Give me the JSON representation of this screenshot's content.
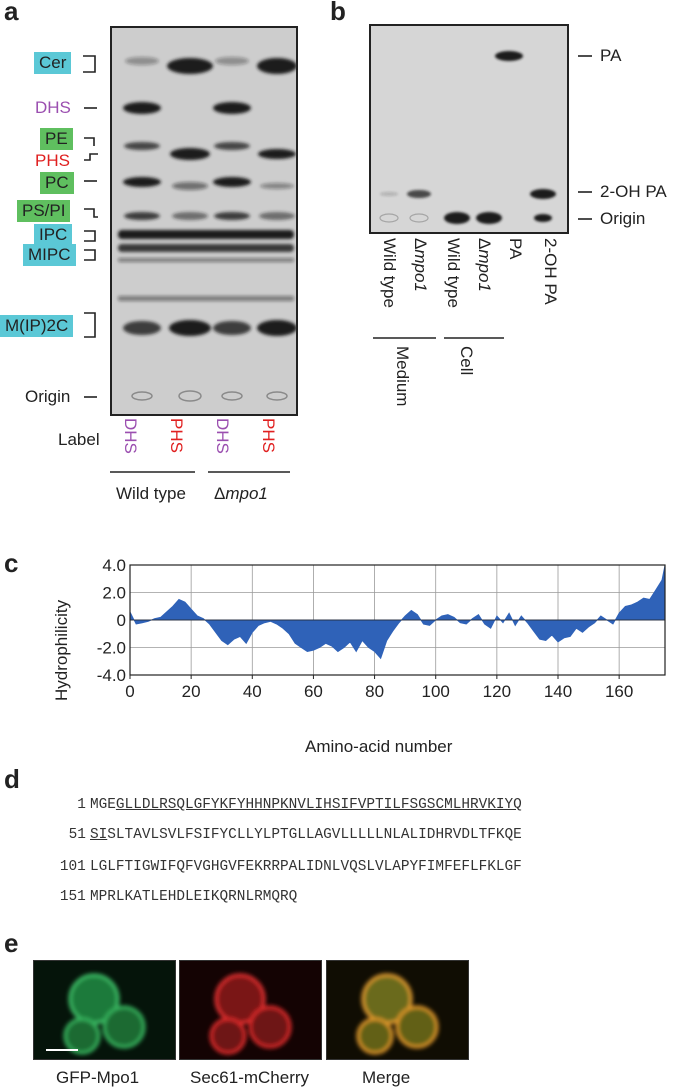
{
  "panel_a": {
    "letter": "a",
    "left_labels": [
      {
        "text": "Cer",
        "style": "cyan"
      },
      {
        "text": "DHS",
        "style": "purple"
      },
      {
        "text": "PE",
        "style": "green"
      },
      {
        "text": "PHS",
        "style": "red"
      },
      {
        "text": "PC",
        "style": "green"
      },
      {
        "text": "PS/PI",
        "style": "green"
      },
      {
        "text": "IPC",
        "style": "cyan"
      },
      {
        "text": "MIPC",
        "style": "cyan"
      },
      {
        "text": "M(IP)2C",
        "style": "cyan"
      },
      {
        "text": "Origin",
        "style": "plain"
      }
    ],
    "row_label": "Label",
    "lane_labels": [
      "DHS",
      "PHS",
      "DHS",
      "PHS"
    ],
    "group_wt": "Wild type",
    "group_mut_prefix": "Δ",
    "group_mut": "mpo1"
  },
  "panel_b": {
    "letter": "b",
    "right_labels": [
      "PA",
      "2-OH PA",
      "Origin"
    ],
    "lanes": [
      {
        "prefix": "",
        "text": "Wild type"
      },
      {
        "prefix": "Δ",
        "text": "mpo1"
      },
      {
        "prefix": "",
        "text": "Wild type"
      },
      {
        "prefix": "Δ",
        "text": "mpo1"
      },
      {
        "prefix": "",
        "text": "PA"
      },
      {
        "prefix": "",
        "text": "2-OH PA"
      }
    ],
    "group_medium": "Medium",
    "group_cell": "Cell"
  },
  "panel_c": {
    "letter": "c",
    "color": "#2f62b8"
  },
  "chart_data": {
    "type": "area",
    "xlabel": "Amino-acid number",
    "ylabel": "Hydrophilicity",
    "xlim": [
      0,
      175
    ],
    "ylim": [
      -4.0,
      4.0
    ],
    "xticks": [
      "0",
      "20",
      "40",
      "60",
      "80",
      "100",
      "120",
      "140",
      "160"
    ],
    "yticks": [
      "4.0",
      "2.0",
      "0",
      "-2.0",
      "-4.0"
    ],
    "grid": true,
    "x": [
      0,
      2,
      4,
      6,
      8,
      10,
      12,
      14,
      16,
      18,
      20,
      22,
      24,
      26,
      28,
      30,
      32,
      34,
      36,
      38,
      40,
      42,
      44,
      46,
      48,
      50,
      52,
      54,
      56,
      58,
      60,
      62,
      64,
      66,
      68,
      70,
      72,
      74,
      76,
      78,
      80,
      82,
      84,
      86,
      88,
      90,
      92,
      94,
      96,
      98,
      100,
      102,
      104,
      106,
      108,
      110,
      112,
      114,
      116,
      118,
      120,
      122,
      124,
      126,
      128,
      130,
      132,
      134,
      136,
      138,
      140,
      142,
      144,
      146,
      148,
      150,
      152,
      154,
      156,
      158,
      160,
      162,
      164,
      166,
      168,
      170,
      172,
      174,
      175
    ],
    "values": [
      0.6,
      -0.3,
      -0.2,
      -0.1,
      0.1,
      0.2,
      0.6,
      1.0,
      1.5,
      1.3,
      0.8,
      0.3,
      0.1,
      -0.3,
      -0.9,
      -1.5,
      -1.8,
      -1.4,
      -1.2,
      -1.7,
      -0.9,
      -0.4,
      -0.2,
      -0.1,
      -0.3,
      -0.6,
      -1.0,
      -1.7,
      -2.0,
      -2.3,
      -2.2,
      -2.0,
      -1.7,
      -1.9,
      -2.3,
      -2.0,
      -1.6,
      -2.3,
      -1.5,
      -2.0,
      -2.3,
      -2.8,
      -1.5,
      -0.8,
      -0.2,
      0.3,
      0.7,
      0.4,
      -0.3,
      -0.4,
      0.0,
      0.3,
      0.4,
      0.2,
      -0.2,
      -0.3,
      0.1,
      0.4,
      -0.3,
      -0.6,
      0.3,
      -0.2,
      0.5,
      -0.4,
      0.3,
      -0.2,
      -0.8,
      -1.4,
      -1.5,
      -1.1,
      -1.6,
      -1.3,
      -1.2,
      -0.6,
      -0.9,
      -0.5,
      -0.2,
      0.3,
      0.0,
      -0.3,
      0.5,
      1.0,
      1.1,
      1.3,
      1.6,
      1.5,
      2.2,
      2.9,
      4.0
    ]
  },
  "panel_d": {
    "letter": "d",
    "lines": [
      {
        "num": "1",
        "pre": "MGE",
        "under": "GLLDLRSQLGFYKFYHHNPKNVLIHSIFVPTILFSGSCMLHRVKIYQ",
        "post": ""
      },
      {
        "num": "51",
        "pre": "",
        "under": "SI",
        "post": "SLTAVLSVLFSIFYCLLYLPTGLLAGVLLLLLNLALIDHRVDLTFKQE"
      },
      {
        "num": "101",
        "pre": "",
        "under": "",
        "post": "LGLFTIGWIFQFVGHGVFEKRRPALIDNLVQSLVLAPYFIMFEFLFKLGF"
      },
      {
        "num": "151",
        "pre": "",
        "under": "",
        "post": "MPRLKATLEHDLEIKQRNLRMQRQ"
      }
    ]
  },
  "panel_e": {
    "letter": "e",
    "captions": [
      "GFP-Mpo1",
      "Sec61-mCherry",
      "Merge"
    ]
  }
}
